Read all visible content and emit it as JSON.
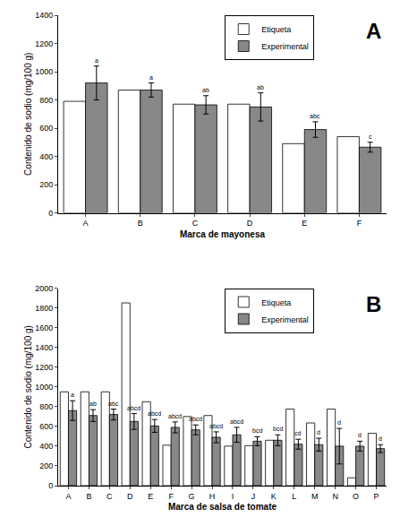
{
  "chart_data": [
    {
      "type": "bar",
      "title": "A",
      "categories": [
        "A",
        "B",
        "C",
        "D",
        "E",
        "F"
      ],
      "series": [
        {
          "name": "Etiqueta",
          "color": "white",
          "values": [
            790,
            870,
            770,
            770,
            490,
            540
          ]
        },
        {
          "name": "Experimental",
          "color": "#888888",
          "values": [
            920,
            870,
            765,
            750,
            590,
            465
          ],
          "errors": [
            120,
            50,
            65,
            100,
            55,
            35
          ]
        }
      ],
      "annotations": [
        {
          "category": "A",
          "text": "a"
        },
        {
          "category": "B",
          "text": "a"
        },
        {
          "category": "C",
          "text": "ab"
        },
        {
          "category": "D",
          "text": "ab"
        },
        {
          "category": "E",
          "text": "abc"
        },
        {
          "category": "F",
          "text": "c"
        }
      ],
      "xlabel": "Marca de mayonesa",
      "ylabel": "Contenido de sodio (mg/100 g)",
      "ylim": [
        0,
        1400
      ],
      "yticks": [
        0,
        200,
        400,
        600,
        800,
        1000,
        1200,
        1400
      ],
      "grid": false,
      "legend": "upper right"
    },
    {
      "type": "bar",
      "title": "B",
      "categories": [
        "A",
        "B",
        "C",
        "D",
        "E",
        "F",
        "G",
        "H",
        "I",
        "J",
        "K",
        "L",
        "M",
        "N",
        "O",
        "P"
      ],
      "series": [
        {
          "name": "Etiqueta",
          "color": "white",
          "values": [
            950,
            950,
            950,
            1850,
            850,
            410,
            700,
            710,
            400,
            405,
            460,
            775,
            635,
            775,
            80,
            530
          ]
        },
        {
          "name": "Experimental",
          "color": "#888888",
          "values": [
            760,
            710,
            720,
            650,
            605,
            590,
            565,
            490,
            515,
            450,
            460,
            420,
            415,
            400,
            400,
            375
          ],
          "errors": [
            100,
            60,
            55,
            80,
            65,
            55,
            50,
            55,
            75,
            45,
            55,
            50,
            65,
            180,
            50,
            40
          ]
        }
      ],
      "annotations": [
        {
          "category": "A",
          "text": "a"
        },
        {
          "category": "B",
          "text": "ab"
        },
        {
          "category": "C",
          "text": "abc"
        },
        {
          "category": "D",
          "text": "abcd"
        },
        {
          "category": "E",
          "text": "abcd"
        },
        {
          "category": "F",
          "text": "abcd"
        },
        {
          "category": "G",
          "text": "abcd"
        },
        {
          "category": "H",
          "text": "abcd"
        },
        {
          "category": "I",
          "text": "abcd"
        },
        {
          "category": "J",
          "text": "bcd"
        },
        {
          "category": "K",
          "text": "bcd"
        },
        {
          "category": "L",
          "text": "cd"
        },
        {
          "category": "M",
          "text": "d"
        },
        {
          "category": "N",
          "text": "d"
        },
        {
          "category": "O",
          "text": "d"
        },
        {
          "category": "P",
          "text": "d"
        }
      ],
      "xlabel": "Marca de salsa de tomate",
      "ylabel": "Contenido de sodio (mg/100 g)",
      "ylim": [
        0,
        2000
      ],
      "yticks": [
        0,
        200,
        400,
        600,
        800,
        1000,
        1200,
        1400,
        1600,
        1800,
        2000
      ],
      "grid": false,
      "legend": "upper right"
    }
  ]
}
